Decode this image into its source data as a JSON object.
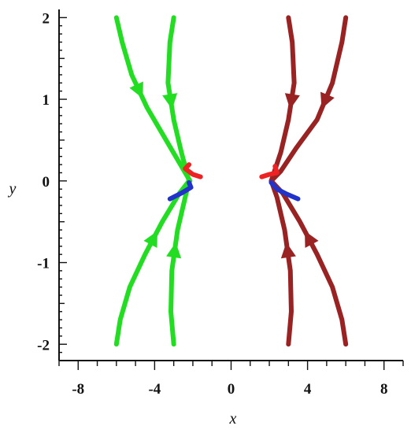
{
  "chart_data": {
    "type": "line",
    "title": "",
    "xlabel": "x",
    "ylabel": "y",
    "xlim": [
      -9,
      9
    ],
    "ylim": [
      -2.2,
      2.1
    ],
    "x_ticks": [
      -8,
      -4,
      0,
      4,
      8
    ],
    "x_tick_labels": [
      "-8",
      "-4",
      "0",
      "4",
      "8"
    ],
    "y_ticks": [
      -2,
      -1,
      0,
      1,
      2
    ],
    "y_tick_labels": [
      "-2",
      "-1",
      "0",
      "1",
      "2"
    ],
    "grid": false,
    "legend": "none",
    "series": [
      {
        "color": "#22dd22",
        "x": [
          -6.0,
          -5.7,
          -5.2,
          -4.4,
          -3.4,
          -2.6,
          -2.15
        ],
        "y": [
          2.0,
          1.7,
          1.3,
          0.9,
          0.5,
          0.18,
          0.0
        ],
        "arrows": [
          {
            "at": 2,
            "direction": "down"
          }
        ]
      },
      {
        "color": "#22dd22",
        "x": [
          -3.0,
          -3.2,
          -3.3,
          -3.0,
          -2.6,
          -2.2
        ],
        "y": [
          2.0,
          1.7,
          1.2,
          0.75,
          0.35,
          0.0
        ],
        "arrows": [
          {
            "at": 2,
            "direction": "down"
          }
        ]
      },
      {
        "color": "#22dd22",
        "x": [
          -6.0,
          -5.8,
          -5.3,
          -4.5,
          -3.6,
          -2.7,
          -2.2
        ],
        "y": [
          -2.0,
          -1.7,
          -1.3,
          -0.9,
          -0.5,
          -0.15,
          0.0
        ],
        "arrows": [
          {
            "at": 3,
            "direction": "up"
          }
        ]
      },
      {
        "color": "#22dd22",
        "x": [
          -3.0,
          -3.15,
          -3.1,
          -2.8,
          -2.4,
          -2.2
        ],
        "y": [
          -2.0,
          -1.6,
          -1.1,
          -0.6,
          -0.2,
          0.0
        ],
        "arrows": [
          {
            "at": 2,
            "direction": "up"
          }
        ]
      },
      {
        "color": "#992222",
        "x": [
          3.0,
          3.2,
          3.3,
          3.0,
          2.6,
          2.1
        ],
        "y": [
          2.0,
          1.7,
          1.2,
          0.75,
          0.35,
          0.0
        ],
        "arrows": [
          {
            "at": 2,
            "direction": "down"
          }
        ]
      },
      {
        "color": "#992222",
        "x": [
          6.0,
          5.8,
          5.3,
          4.5,
          3.4,
          2.6,
          2.1
        ],
        "y": [
          2.0,
          1.7,
          1.2,
          0.75,
          0.4,
          0.12,
          0.0
        ],
        "arrows": [
          {
            "at": 2,
            "direction": "down"
          }
        ]
      },
      {
        "color": "#992222",
        "x": [
          3.0,
          3.15,
          3.1,
          2.8,
          2.4,
          2.1
        ],
        "y": [
          -2.0,
          -1.6,
          -1.1,
          -0.6,
          -0.2,
          0.0
        ],
        "arrows": [
          {
            "at": 2,
            "direction": "up"
          }
        ]
      },
      {
        "color": "#992222",
        "x": [
          6.0,
          5.8,
          5.3,
          4.5,
          3.6,
          2.7,
          2.1
        ],
        "y": [
          -2.0,
          -1.7,
          -1.3,
          -0.9,
          -0.5,
          -0.15,
          0.0
        ],
        "arrows": [
          {
            "at": 3,
            "direction": "up"
          }
        ]
      },
      {
        "color": "#ee2222",
        "x": [
          -1.6,
          -2.0,
          -2.4,
          -2.2
        ],
        "y": [
          0.05,
          0.08,
          0.15,
          0.2
        ],
        "arrows": []
      },
      {
        "color": "#2233cc",
        "x": [
          -3.2,
          -2.6,
          -2.1,
          -2.2
        ],
        "y": [
          -0.22,
          -0.15,
          -0.08,
          -0.02
        ],
        "arrows": []
      },
      {
        "color": "#ee2222",
        "x": [
          1.6,
          2.0,
          2.4,
          2.3
        ],
        "y": [
          0.05,
          0.08,
          0.1,
          0.18
        ],
        "arrows": []
      },
      {
        "color": "#2233cc",
        "x": [
          3.5,
          2.9,
          2.4,
          2.1
        ],
        "y": [
          -0.22,
          -0.16,
          -0.1,
          -0.02
        ],
        "arrows": []
      }
    ]
  }
}
